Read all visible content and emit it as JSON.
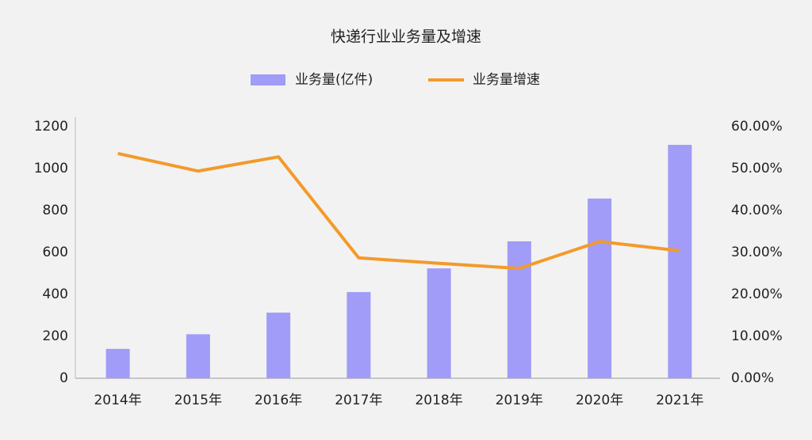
{
  "chart_data": {
    "type": "bar-line",
    "title": "快递行业业务量及增速",
    "categories": [
      "2014年",
      "2015年",
      "2016年",
      "2017年",
      "2018年",
      "2019年",
      "2020年",
      "2021年"
    ],
    "series": [
      {
        "name": "业务量(亿件)",
        "type": "bar",
        "color": "#a09cf7",
        "values": [
          140,
          210,
          313,
          411,
          524,
          653,
          857,
          1113
        ]
      },
      {
        "name": "业务量增速",
        "type": "line",
        "axis": "y2",
        "color": "#f39a2b",
        "values": [
          53.6,
          49.4,
          52.8,
          28.7,
          27.4,
          26.2,
          32.6,
          30.4
        ]
      }
    ],
    "ylim": [
      0,
      1200
    ],
    "yticks": [
      0,
      200,
      400,
      600,
      800,
      1000,
      1200
    ],
    "y2lim": [
      0,
      60
    ],
    "y2ticks": [
      {
        "value": 0,
        "label": "0.00%"
      },
      {
        "value": 10,
        "label": "10.00%"
      },
      {
        "value": 20,
        "label": "20.00%"
      },
      {
        "value": 30,
        "label": "30.00%"
      },
      {
        "value": 40,
        "label": "40.00%"
      },
      {
        "value": 50,
        "label": "50.00%"
      },
      {
        "value": 60,
        "label": "60.00%"
      }
    ]
  }
}
